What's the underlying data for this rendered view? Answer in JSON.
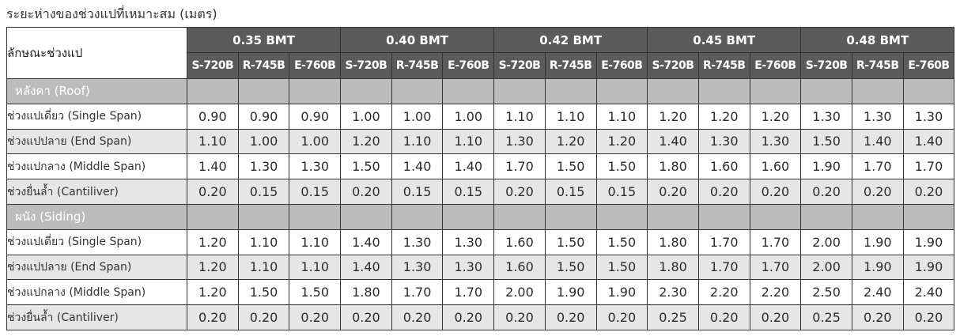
{
  "caption": "ระยะห่างของช่วงแปที่เหมาะสม (เมตร)",
  "header": {
    "label": "ลักษณะช่วงแป",
    "groups": [
      "0.35 BMT",
      "0.40 BMT",
      "0.42 BMT",
      "0.45 BMT",
      "0.48 BMT"
    ],
    "subs": [
      "S-720B",
      "R-745B",
      "E-760B"
    ]
  },
  "sections": [
    {
      "title": "หลังคา (Roof)",
      "rows": [
        {
          "label": "ช่วงแปเดี่ยว (Single Span)",
          "values": [
            "0.90",
            "0.90",
            "0.90",
            "1.00",
            "1.00",
            "1.00",
            "1.10",
            "1.10",
            "1.10",
            "1.20",
            "1.20",
            "1.20",
            "1.30",
            "1.30",
            "1.30"
          ]
        },
        {
          "label": "ช่วงแปปลาย (End Span)",
          "values": [
            "1.10",
            "1.00",
            "1.00",
            "1.20",
            "1.10",
            "1.10",
            "1.30",
            "1.20",
            "1.20",
            "1.40",
            "1.30",
            "1.30",
            "1.50",
            "1.40",
            "1.40"
          ]
        },
        {
          "label": "ช่วงแปกลาง (Middle Span)",
          "values": [
            "1.40",
            "1.30",
            "1.30",
            "1.50",
            "1.40",
            "1.40",
            "1.70",
            "1.50",
            "1.50",
            "1.80",
            "1.60",
            "1.60",
            "1.90",
            "1.70",
            "1.70"
          ]
        },
        {
          "label": "ช่วงยื่นล้ำ (Cantiliver)",
          "values": [
            "0.20",
            "0.15",
            "0.15",
            "0.20",
            "0.15",
            "0.15",
            "0.20",
            "0.15",
            "0.15",
            "0.20",
            "0.20",
            "0.20",
            "0.20",
            "0.20",
            "0.20"
          ]
        }
      ]
    },
    {
      "title": "ผนัง (Siding)",
      "rows": [
        {
          "label": "ช่วงแปเดี่ยว (Single Span)",
          "values": [
            "1.20",
            "1.10",
            "1.10",
            "1.40",
            "1.30",
            "1.30",
            "1.60",
            "1.50",
            "1.50",
            "1.80",
            "1.70",
            "1.70",
            "2.00",
            "1.90",
            "1.90"
          ]
        },
        {
          "label": "ช่วงแปปลาย (End Span)",
          "values": [
            "1.20",
            "1.10",
            "1.10",
            "1.40",
            "1.30",
            "1.30",
            "1.60",
            "1.50",
            "1.50",
            "1.80",
            "1.70",
            "1.70",
            "2.00",
            "1.90",
            "1.90"
          ]
        },
        {
          "label": "ช่วงแปกลาง (Middle Span)",
          "values": [
            "1.20",
            "1.50",
            "1.50",
            "1.80",
            "1.70",
            "1.70",
            "2.00",
            "1.90",
            "1.90",
            "2.30",
            "2.20",
            "2.20",
            "2.50",
            "2.40",
            "2.40"
          ]
        },
        {
          "label": "ช่วงยื่นล้ำ (Cantiliver)",
          "values": [
            "0.20",
            "0.20",
            "0.20",
            "0.20",
            "0.20",
            "0.20",
            "0.20",
            "0.20",
            "0.20",
            "0.25",
            "0.20",
            "0.20",
            "0.25",
            "0.20",
            "0.20"
          ]
        }
      ]
    }
  ],
  "colors": {
    "header_bg": "#5b5b5b",
    "section_bg": "#bcbcbc",
    "alt_row_bg": "#e6e6e6",
    "border": "#333333"
  }
}
